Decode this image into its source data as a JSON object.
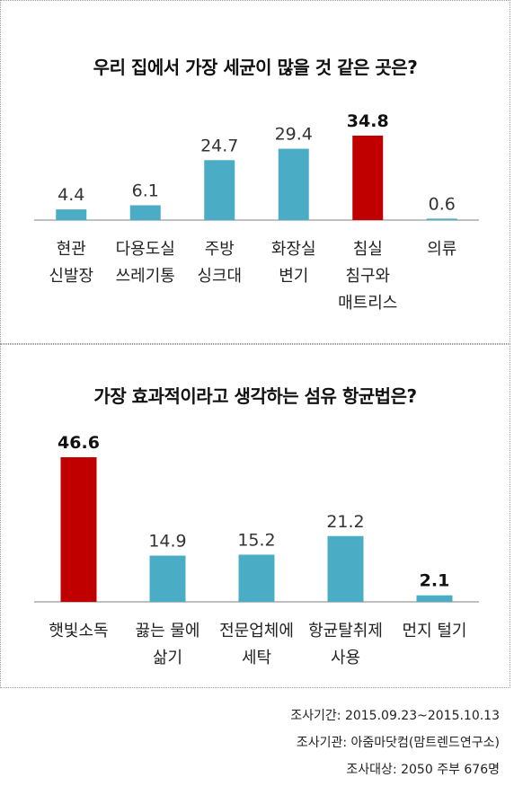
{
  "chart_data": [
    {
      "type": "bar",
      "title": "우리 집에서 가장 세균이 많을 것 같은 곳은?",
      "categories": [
        [
          "현관",
          "신발장"
        ],
        [
          "다용도실",
          "쓰레기통"
        ],
        [
          "주방",
          "싱크대"
        ],
        [
          "화장실",
          "변기"
        ],
        [
          "침실",
          "침구와",
          "매트리스"
        ],
        [
          "의류"
        ]
      ],
      "value_labels": [
        "4.4",
        "6.1",
        "24.7",
        "29.4",
        "34.8",
        "0.6"
      ],
      "values": [
        4.4,
        6.1,
        24.7,
        29.4,
        34.8,
        0.6
      ],
      "highlight_index": 4,
      "ylim": [
        0,
        34.8
      ],
      "xlabel": "",
      "ylabel": "",
      "grid": false,
      "colors": {
        "bar": "#4bacc6",
        "highlight": "#c00000",
        "axis": "#7f7f7f"
      }
    },
    {
      "type": "bar",
      "title": "가장 효과적이라고 생각하는 섬유 항균법은?",
      "categories": [
        [
          "햇빛소독"
        ],
        [
          "끓는 물에",
          "삶기"
        ],
        [
          "전문업체에",
          "세탁"
        ],
        [
          "항균탈취제",
          "사용"
        ],
        [
          "먼지 털기"
        ]
      ],
      "value_labels": [
        "46.6",
        "14.9",
        "15.2",
        "21.2",
        "2.1"
      ],
      "values": [
        46.6,
        14.9,
        15.2,
        21.2,
        2.1
      ],
      "highlight_index": 0,
      "ylim": [
        0,
        46.6
      ],
      "xlabel": "",
      "ylabel": "",
      "grid": false,
      "colors": {
        "bar": "#4bacc6",
        "highlight": "#c00000",
        "axis": "#7f7f7f"
      }
    }
  ],
  "footer": {
    "period": "조사기간: 2015.09.23~2015.10.13",
    "agency": "조사기관: 아줌마닷컴(맘트렌드연구소)",
    "target": "조사대상: 2050 주부 676명"
  }
}
